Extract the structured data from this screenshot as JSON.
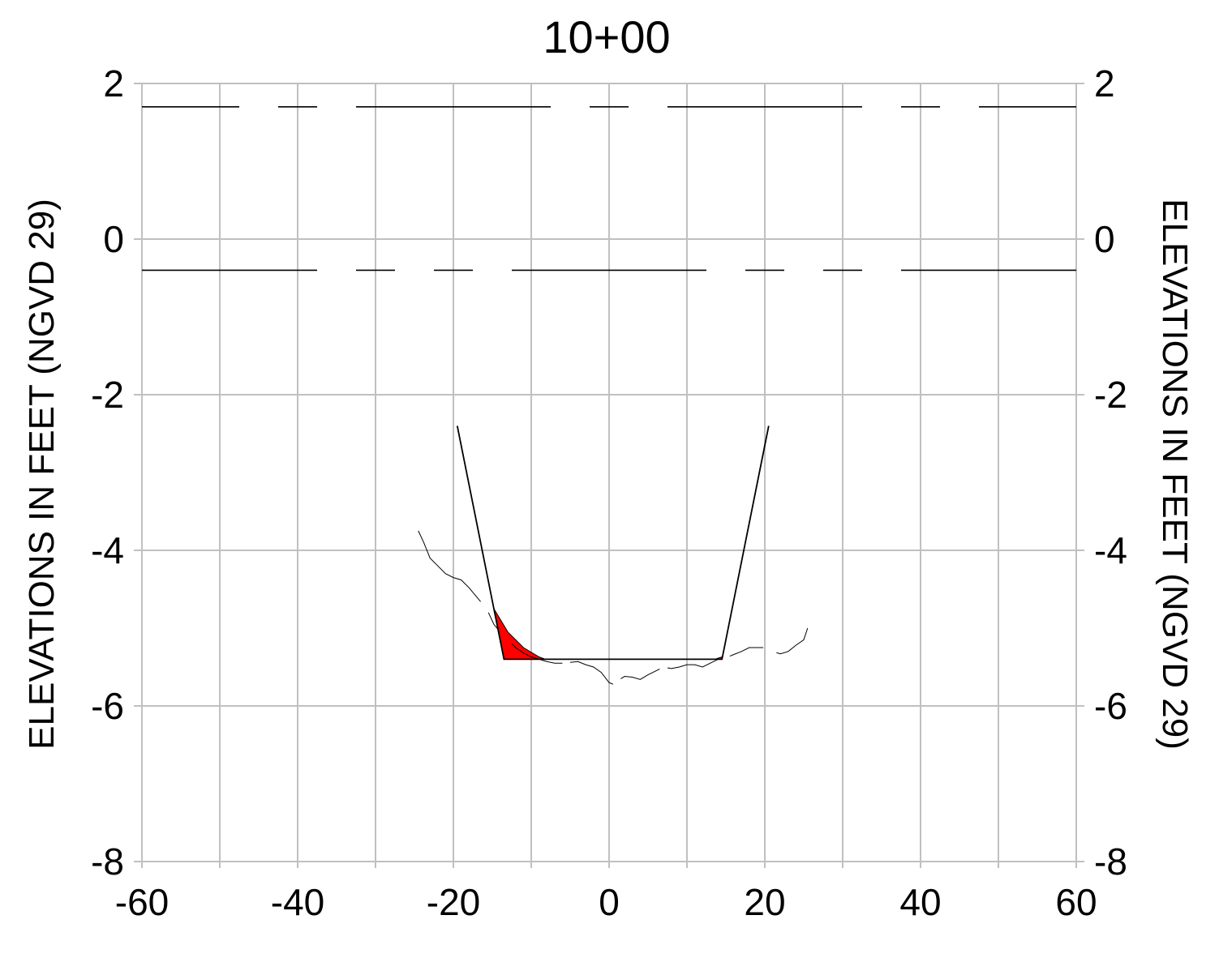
{
  "chart_data": {
    "type": "line",
    "title": "10+00",
    "ylabel_left": "ELEVATIONS IN FEET (NGVD 29)",
    "ylabel_right": "ELEVATIONS IN FEET (NGVD 29)",
    "xlim": [
      -60,
      60
    ],
    "ylim": [
      -8,
      2
    ],
    "x_ticks": [
      -60,
      -40,
      -20,
      0,
      20,
      40,
      60
    ],
    "x_tick_labels": [
      "-60",
      "-40",
      "-20",
      "0",
      "20",
      "40",
      "60"
    ],
    "y_ticks": [
      2,
      0,
      -2,
      -4,
      -6,
      -8
    ],
    "y_tick_labels": [
      "2",
      "0",
      "-2",
      "-4",
      "-6",
      "-8"
    ],
    "grid": true,
    "grid_x_step": 10,
    "colors": {
      "grid": "#c0c0c0",
      "line": "#000000",
      "fill": "#ff0000"
    },
    "series": [
      {
        "kind": "dashed-level",
        "y": 1.7,
        "segments": [
          [
            -60,
            -47.5
          ],
          [
            -42.5,
            -37.5
          ],
          [
            -32.5,
            -7.5
          ],
          [
            -2.5,
            2.5
          ],
          [
            7.5,
            32.5
          ],
          [
            37.5,
            42.5
          ],
          [
            47.5,
            60
          ]
        ]
      },
      {
        "kind": "dashed-level",
        "y": -0.4,
        "segments": [
          [
            -60,
            -37.5
          ],
          [
            -32.5,
            -27.5
          ],
          [
            -22.5,
            -17.5
          ],
          [
            -12.5,
            12.5
          ],
          [
            17.5,
            22.5
          ],
          [
            27.5,
            32.5
          ],
          [
            37.5,
            60
          ]
        ]
      },
      {
        "kind": "solid",
        "x": [
          -19.5,
          -13.5,
          14.5,
          20.5
        ],
        "y": [
          -2.4,
          -5.4,
          -5.4,
          -2.4
        ]
      },
      {
        "kind": "thin",
        "x": [
          -24.5,
          -23.8,
          -23.0,
          -22.0,
          -21.0,
          -20.0,
          -19.0,
          -18.0,
          -17.0,
          -16.0,
          -15.5,
          -14.8,
          -14.0,
          -13.0,
          -12.0,
          -11.0,
          -10.0,
          -9.0,
          -8.0,
          -7.0,
          -6.0,
          -5.0,
          -4.0,
          -3.0,
          -2.0,
          -1.0,
          0.0,
          0.5,
          1.0,
          1.5,
          2.0,
          3.0,
          4.0,
          5.0,
          6.0,
          7.0,
          8.0,
          9.0,
          10.0,
          11.0,
          12.0,
          13.0,
          14.0,
          15.0,
          16.0,
          17.0,
          18.0,
          19.0,
          20.0,
          21.0,
          22.0,
          23.0,
          24.0,
          25.0,
          25.5
        ],
        "y": [
          -3.75,
          -3.9,
          -4.1,
          -4.2,
          -4.3,
          -4.35,
          -4.38,
          -4.48,
          -4.6,
          -4.72,
          -4.8,
          -4.95,
          -5.05,
          -5.15,
          -5.25,
          -5.32,
          -5.37,
          -5.4,
          -5.43,
          -5.45,
          -5.45,
          -5.44,
          -5.43,
          -5.47,
          -5.5,
          -5.57,
          -5.7,
          -5.72,
          -5.68,
          -5.65,
          -5.62,
          -5.63,
          -5.66,
          -5.6,
          -5.55,
          -5.5,
          -5.52,
          -5.5,
          -5.47,
          -5.47,
          -5.5,
          -5.45,
          -5.4,
          -5.38,
          -5.34,
          -5.3,
          -5.25,
          -5.25,
          -5.25,
          -5.3,
          -5.33,
          -5.3,
          -5.22,
          -5.15,
          -5.0
        ],
        "visible_segments": [
          [
            -24.5,
            -16.5
          ],
          [
            -15.5,
            -14.3
          ],
          [
            -12.5,
            -6.0
          ],
          [
            -5.0,
            0.5
          ],
          [
            1.5,
            6.5
          ],
          [
            7.5,
            14.0
          ],
          [
            15.5,
            19.8
          ],
          [
            21.5,
            25.5
          ]
        ]
      }
    ],
    "fill_regions": [
      {
        "x": [
          -14.8,
          -13.0,
          -11.0,
          -9.0,
          -8.2,
          -13.5
        ],
        "y": [
          -4.75,
          -5.05,
          -5.25,
          -5.37,
          -5.4,
          -5.4
        ]
      },
      {
        "x": [
          13.6,
          14.5,
          14.5
        ],
        "y": [
          -5.4,
          -5.37,
          -5.4
        ]
      }
    ]
  }
}
